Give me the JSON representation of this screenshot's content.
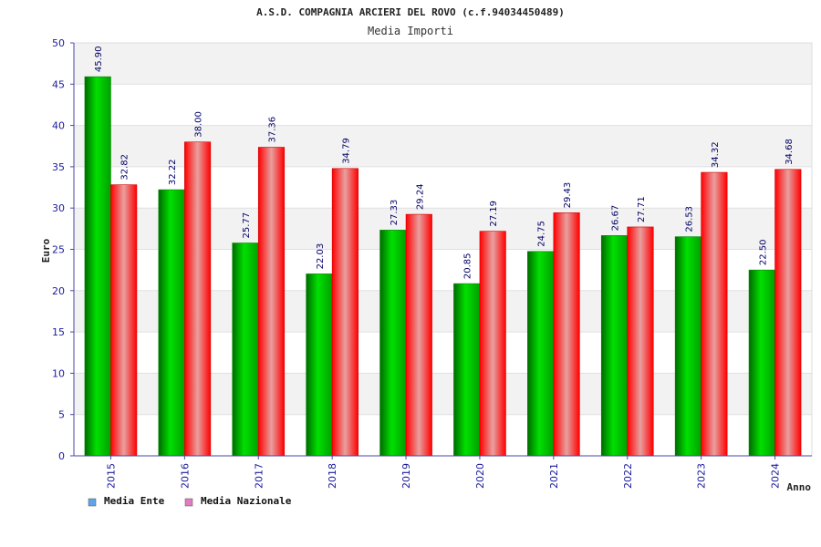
{
  "chart_data": {
    "type": "bar",
    "title": "A.S.D. COMPAGNIA ARCIERI DEL ROVO (c.f.94034450489)",
    "subtitle": "Media Importi",
    "xlabel": "Anno",
    "ylabel": "Euro",
    "ylim": [
      0,
      50
    ],
    "yticks": [
      0,
      5,
      10,
      15,
      20,
      25,
      30,
      35,
      40,
      45,
      50
    ],
    "categories": [
      "2015",
      "2016",
      "2017",
      "2018",
      "2019",
      "2020",
      "2021",
      "2022",
      "2023",
      "2024"
    ],
    "series": [
      {
        "name": "Media Ente",
        "values": [
          45.9,
          32.22,
          25.77,
          22.03,
          27.33,
          20.85,
          24.75,
          26.67,
          26.53,
          22.5
        ],
        "labels": [
          "45.90",
          "32.22",
          "25.77",
          "22.03",
          "27.33",
          "20.85",
          "24.75",
          "26.67",
          "26.53",
          "22.50"
        ],
        "color": "#00b000",
        "legend_color": "#5da5e8"
      },
      {
        "name": "Media Nazionale",
        "values": [
          32.82,
          38.0,
          37.36,
          34.79,
          29.24,
          27.19,
          29.43,
          27.71,
          34.32,
          34.68
        ],
        "labels": [
          "32.82",
          "38.00",
          "37.36",
          "34.79",
          "29.24",
          "27.19",
          "29.43",
          "27.71",
          "34.32",
          "34.68"
        ],
        "color": "#ff1a1a",
        "legend_color": "#e27bbf"
      }
    ],
    "grid": true,
    "legend_position": "bottom-left"
  }
}
